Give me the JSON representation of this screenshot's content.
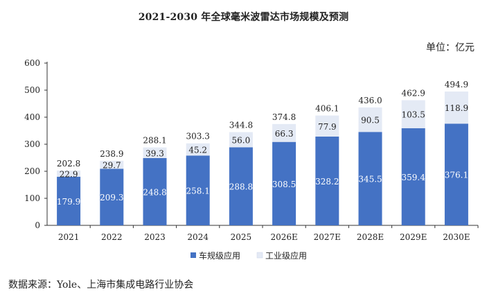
{
  "title": "2021-2030 年全球毫米波雷达市场规模及预测",
  "unit": "单位：亿元",
  "source": "数据来源：Yole、上海市集成电路行业协会",
  "colors": {
    "vehicle": "#4472C4",
    "industrial": "#E4EAF5",
    "axis": "#333333",
    "text": "#222222"
  },
  "chart_data": {
    "type": "bar",
    "stacked": true,
    "title": "2021-2030 年全球毫米波雷达市场规模及预测",
    "ylim": [
      0,
      600
    ],
    "yticks": [
      0,
      100,
      200,
      300,
      400,
      500,
      600
    ],
    "grid": false,
    "legend_position": "bottom",
    "categories": [
      "2021",
      "2022",
      "2023",
      "2024",
      "2025",
      "2026E",
      "2027E",
      "2028E",
      "2029E",
      "2030E"
    ],
    "series": [
      {
        "name": "车规级应用",
        "values": [
          179.9,
          209.3,
          248.8,
          258.1,
          288.8,
          308.5,
          328.2,
          345.5,
          359.4,
          376.1
        ]
      },
      {
        "name": "工业级应用",
        "values": [
          22.9,
          29.7,
          39.3,
          45.2,
          56.0,
          66.3,
          77.9,
          90.5,
          103.5,
          118.9
        ]
      }
    ],
    "totals": [
      202.8,
      238.9,
      288.1,
      303.3,
      344.8,
      374.8,
      406.1,
      436.0,
      462.9,
      494.9
    ]
  }
}
